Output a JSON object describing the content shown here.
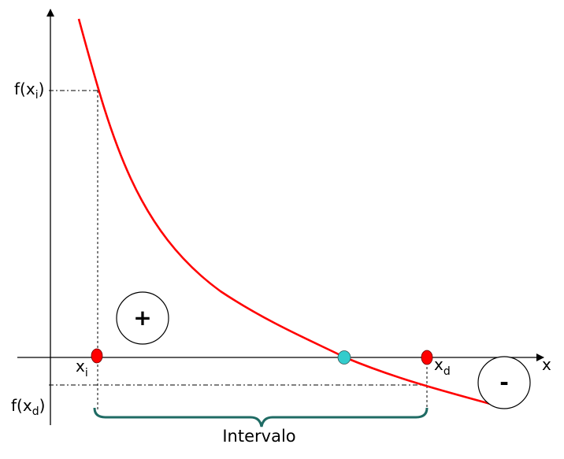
{
  "labels": {
    "x_axis": "x",
    "f_xi_prefix": "f(x",
    "f_xi_sub": "i",
    "f_xi_suffix": ")",
    "f_xd_prefix": "f(x",
    "f_xd_sub": "d",
    "f_xd_suffix": ")",
    "xi_main": "x",
    "xi_sub": "i",
    "xd_main": "x",
    "xd_sub": "d",
    "interval": "Intervalo"
  },
  "signs": {
    "positive": "+",
    "negative": "-"
  },
  "colors": {
    "curve": "#ff0000",
    "endpoint": "#ff0000",
    "root": "#33cccc",
    "brace": "#1f6b64",
    "axis": "#000000",
    "guide": "#000000"
  }
}
